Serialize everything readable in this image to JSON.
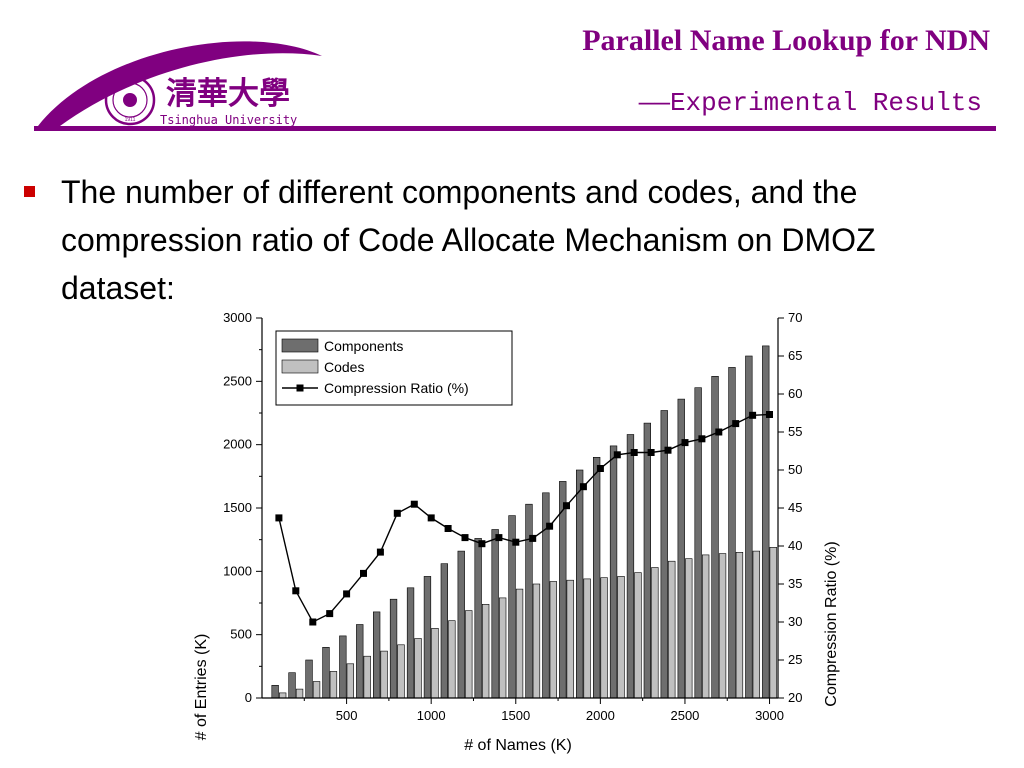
{
  "header": {
    "title": "Parallel Name Lookup for NDN",
    "subtitle": "——Experimental Results",
    "logo": {
      "chinese_name": "清華大學",
      "english_name": "Tsinghua University",
      "seal_text": "1911",
      "color": "#800080"
    }
  },
  "bullet": {
    "marker_color": "#cc0000",
    "text": "The number of different components and codes, and the compression ratio of Code Allocate Mechanism on DMOZ dataset:"
  },
  "chart_data": {
    "type": "bar",
    "xlabel": "# of Names (K)",
    "ylabel": "# of Entries (K)",
    "y2label": "Compression Ratio (%)",
    "xlim": [
      0,
      3050
    ],
    "ylim": [
      0,
      3000
    ],
    "y2lim": [
      20,
      70
    ],
    "xticks": [
      500,
      1000,
      1500,
      2000,
      2500,
      3000
    ],
    "yticks": [
      0,
      500,
      1000,
      1500,
      2000,
      2500,
      3000
    ],
    "y2ticks": [
      20,
      25,
      30,
      35,
      40,
      45,
      50,
      55,
      60,
      65,
      70
    ],
    "x": [
      100,
      200,
      300,
      400,
      500,
      600,
      700,
      800,
      900,
      1000,
      1100,
      1200,
      1300,
      1400,
      1500,
      1600,
      1700,
      1800,
      1900,
      2000,
      2100,
      2200,
      2300,
      2400,
      2500,
      2600,
      2700,
      2800,
      2900,
      3000
    ],
    "legend_position": "top-left",
    "series": [
      {
        "name": "Components",
        "kind": "bar",
        "axis": "left",
        "color": "#6e6e6e",
        "values": [
          100,
          200,
          300,
          400,
          490,
          580,
          680,
          780,
          870,
          960,
          1060,
          1160,
          1260,
          1330,
          1440,
          1530,
          1620,
          1710,
          1800,
          1900,
          1990,
          2080,
          2170,
          2270,
          2360,
          2450,
          2540,
          2610,
          2700,
          2780
        ]
      },
      {
        "name": "Codes",
        "kind": "bar",
        "axis": "left",
        "color": "#c0c0c0",
        "values": [
          40,
          70,
          130,
          210,
          270,
          330,
          370,
          420,
          470,
          550,
          610,
          690,
          740,
          790,
          860,
          900,
          920,
          930,
          940,
          950,
          960,
          990,
          1030,
          1080,
          1100,
          1130,
          1140,
          1150,
          1160,
          1190
        ]
      },
      {
        "name": "Compression Ratio (%)",
        "kind": "line",
        "axis": "right",
        "color": "#000000",
        "values": [
          43.7,
          34.1,
          30.0,
          31.1,
          33.7,
          36.4,
          39.2,
          44.3,
          45.5,
          43.7,
          42.3,
          41.1,
          40.3,
          41.1,
          40.5,
          41.0,
          42.6,
          45.3,
          47.8,
          50.2,
          52.0,
          52.3,
          52.3,
          52.6,
          53.6,
          54.1,
          55.0,
          56.1,
          57.2,
          57.3
        ]
      }
    ]
  }
}
